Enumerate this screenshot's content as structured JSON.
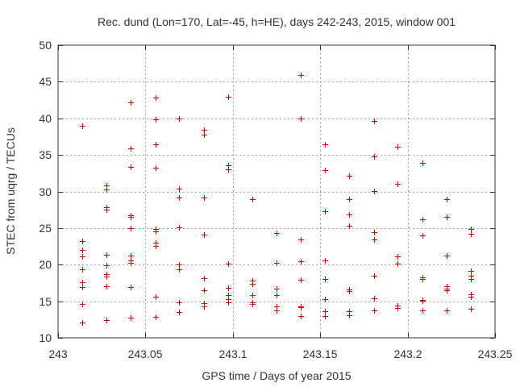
{
  "chart_data": {
    "type": "scatter",
    "title": "Rec. dund (Lon=170, Lat=-45, h=HE), days 242-243, 2015, window 001",
    "xlabel": "GPS time / Days of year 2015",
    "ylabel": "STEC from uqrg / TECUs",
    "xlim": [
      243,
      243.25
    ],
    "ylim": [
      10,
      50
    ],
    "xticks": [
      243,
      243.05,
      243.1,
      243.15,
      243.2,
      243.25
    ],
    "xtick_labels": [
      "243",
      "243.05",
      "243.1",
      "243.15",
      "243.2",
      "243.25"
    ],
    "yticks": [
      10,
      15,
      20,
      25,
      30,
      35,
      40,
      45,
      50
    ],
    "ytick_labels": [
      "10",
      "15",
      "20",
      "25",
      "30",
      "35",
      "40",
      "45",
      "50"
    ],
    "grid": true,
    "marker": "+",
    "marker_color": "#d40000",
    "series": [
      {
        "name": "STEC",
        "points": [
          [
            243.0139,
            39.0
          ],
          [
            243.0139,
            23.2
          ],
          [
            243.0139,
            22.0
          ],
          [
            243.0139,
            21.1
          ],
          [
            243.0139,
            19.4
          ],
          [
            243.0139,
            17.6
          ],
          [
            243.0139,
            16.9
          ],
          [
            243.0139,
            14.6
          ],
          [
            243.0139,
            12.1
          ],
          [
            243.0278,
            30.8
          ],
          [
            243.0278,
            30.3
          ],
          [
            243.0278,
            27.9
          ],
          [
            243.0278,
            27.5
          ],
          [
            243.0278,
            21.4
          ],
          [
            243.0278,
            19.9
          ],
          [
            243.0278,
            18.7
          ],
          [
            243.0278,
            18.4
          ],
          [
            243.0278,
            17.0
          ],
          [
            243.0278,
            12.4
          ],
          [
            243.0417,
            42.2
          ],
          [
            243.0417,
            35.9
          ],
          [
            243.0417,
            33.4
          ],
          [
            243.0417,
            26.8
          ],
          [
            243.0417,
            26.5
          ],
          [
            243.0417,
            25.0
          ],
          [
            243.0417,
            21.2
          ],
          [
            243.0417,
            20.6
          ],
          [
            243.0417,
            20.3
          ],
          [
            243.0417,
            16.9
          ],
          [
            243.0417,
            12.7
          ],
          [
            243.0556,
            42.8
          ],
          [
            243.0556,
            39.9
          ],
          [
            243.0556,
            36.5
          ],
          [
            243.0556,
            33.2
          ],
          [
            243.0556,
            24.9
          ],
          [
            243.0556,
            24.5
          ],
          [
            243.0556,
            23.0
          ],
          [
            243.0556,
            22.6
          ],
          [
            243.0556,
            15.6
          ],
          [
            243.0556,
            12.9
          ],
          [
            243.0694,
            40.0
          ],
          [
            243.0694,
            30.4
          ],
          [
            243.0694,
            29.2
          ],
          [
            243.0694,
            25.1
          ],
          [
            243.0694,
            20.0
          ],
          [
            243.0694,
            19.4
          ],
          [
            243.0694,
            14.8
          ],
          [
            243.0694,
            13.5
          ],
          [
            243.0833,
            38.4
          ],
          [
            243.0833,
            37.8
          ],
          [
            243.0833,
            29.2
          ],
          [
            243.0833,
            24.1
          ],
          [
            243.0833,
            18.2
          ],
          [
            243.0833,
            16.5
          ],
          [
            243.0833,
            14.7
          ],
          [
            243.0833,
            14.3
          ],
          [
            243.0972,
            43.0
          ],
          [
            243.0972,
            33.6
          ],
          [
            243.0972,
            33.0
          ],
          [
            243.0972,
            20.1
          ],
          [
            243.0972,
            16.8
          ],
          [
            243.0972,
            15.8
          ],
          [
            243.0972,
            15.3
          ],
          [
            243.0972,
            14.9
          ],
          [
            243.1111,
            28.9
          ],
          [
            243.1111,
            17.8
          ],
          [
            243.1111,
            17.4
          ],
          [
            243.1111,
            15.8
          ],
          [
            243.1111,
            14.9
          ],
          [
            243.1111,
            14.6
          ],
          [
            243.125,
            24.3
          ],
          [
            243.125,
            20.3
          ],
          [
            243.125,
            16.7
          ],
          [
            243.125,
            15.8
          ],
          [
            243.125,
            14.3
          ],
          [
            243.125,
            13.8
          ],
          [
            243.1389,
            45.9
          ],
          [
            243.1389,
            40.0
          ],
          [
            243.1389,
            23.4
          ],
          [
            243.1389,
            20.5
          ],
          [
            243.1389,
            17.9
          ],
          [
            243.1389,
            14.3
          ],
          [
            243.1389,
            14.2
          ],
          [
            243.1389,
            13.0
          ],
          [
            243.1528,
            36.4
          ],
          [
            243.1528,
            32.9
          ],
          [
            243.1528,
            27.3
          ],
          [
            243.1528,
            20.6
          ],
          [
            243.1528,
            18.0
          ],
          [
            243.1528,
            15.3
          ],
          [
            243.1528,
            13.6
          ],
          [
            243.1528,
            13.0
          ],
          [
            243.1667,
            32.1
          ],
          [
            243.1667,
            28.9
          ],
          [
            243.1667,
            26.9
          ],
          [
            243.1667,
            25.3
          ],
          [
            243.1667,
            16.6
          ],
          [
            243.1667,
            16.4
          ],
          [
            243.1667,
            13.6
          ],
          [
            243.1667,
            13.1
          ],
          [
            243.1806,
            39.6
          ],
          [
            243.1806,
            34.8
          ],
          [
            243.1806,
            30.1
          ],
          [
            243.1806,
            24.4
          ],
          [
            243.1806,
            23.4
          ],
          [
            243.1806,
            18.5
          ],
          [
            243.1806,
            15.4
          ],
          [
            243.1806,
            13.8
          ],
          [
            243.1944,
            36.1
          ],
          [
            243.1944,
            31.0
          ],
          [
            243.1944,
            21.1
          ],
          [
            243.1944,
            20.1
          ],
          [
            243.1944,
            14.4
          ],
          [
            243.1944,
            14.1
          ],
          [
            243.2083,
            33.9
          ],
          [
            243.2083,
            26.2
          ],
          [
            243.2083,
            24.0
          ],
          [
            243.2083,
            18.3
          ],
          [
            243.2083,
            18.0
          ],
          [
            243.2083,
            15.2
          ],
          [
            243.2083,
            15.1
          ],
          [
            243.2083,
            13.8
          ],
          [
            243.2222,
            28.9
          ],
          [
            243.2222,
            26.5
          ],
          [
            243.2222,
            21.2
          ],
          [
            243.2222,
            17.0
          ],
          [
            243.2222,
            16.7
          ],
          [
            243.2222,
            16.5
          ],
          [
            243.2222,
            13.8
          ],
          [
            243.2361,
            24.9
          ],
          [
            243.2361,
            24.2
          ],
          [
            243.2361,
            19.1
          ],
          [
            243.2361,
            18.5
          ],
          [
            243.2361,
            18.0
          ],
          [
            243.2361,
            15.9
          ],
          [
            243.2361,
            15.6
          ],
          [
            243.2361,
            14.0
          ]
        ]
      }
    ]
  }
}
